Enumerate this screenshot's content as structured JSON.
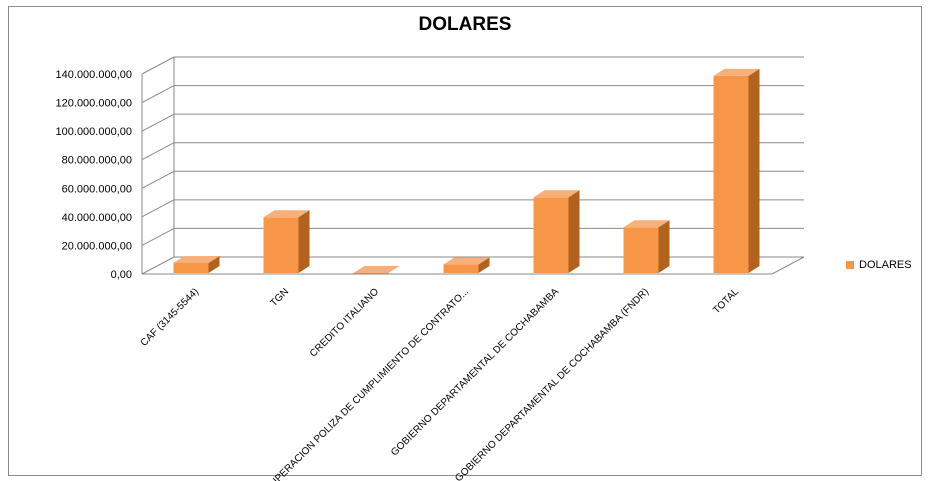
{
  "chart_data": {
    "type": "bar",
    "title": "DOLARES",
    "xlabel": "",
    "ylabel": "",
    "categories": [
      "CAF (3145-5544)",
      "TGN",
      "CREDITO ITALIANO",
      "RECUPERACION POLIZA DE CUMPLIMIENTO DE CONTRATO...",
      "GOBIERNO DEPARTAMENTAL DE COCHABAMBA",
      "GOBIERNO DEPARTAMENTAL DE COCHABAMBA (FNDR)",
      "TOTAL"
    ],
    "series": [
      {
        "name": "DOLARES",
        "values": [
          7000000,
          39000000,
          0,
          6000000,
          53000000,
          32000000,
          138000000
        ]
      }
    ],
    "ylim": [
      0,
      140000000
    ],
    "yticks": [
      0,
      20000000,
      40000000,
      60000000,
      80000000,
      100000000,
      120000000,
      140000000
    ],
    "ytick_labels": [
      "0,00",
      "20.000.000,00",
      "40.000.000,00",
      "60.000.000,00",
      "80.000.000,00",
      "100.000.000,00",
      "120.000.000,00",
      "140.000.000,00"
    ],
    "grid": true,
    "legend_position": "right",
    "bar_color": "#f79646",
    "bar_side_color": "#b0621e",
    "bar_top_color": "#f7b07a"
  }
}
